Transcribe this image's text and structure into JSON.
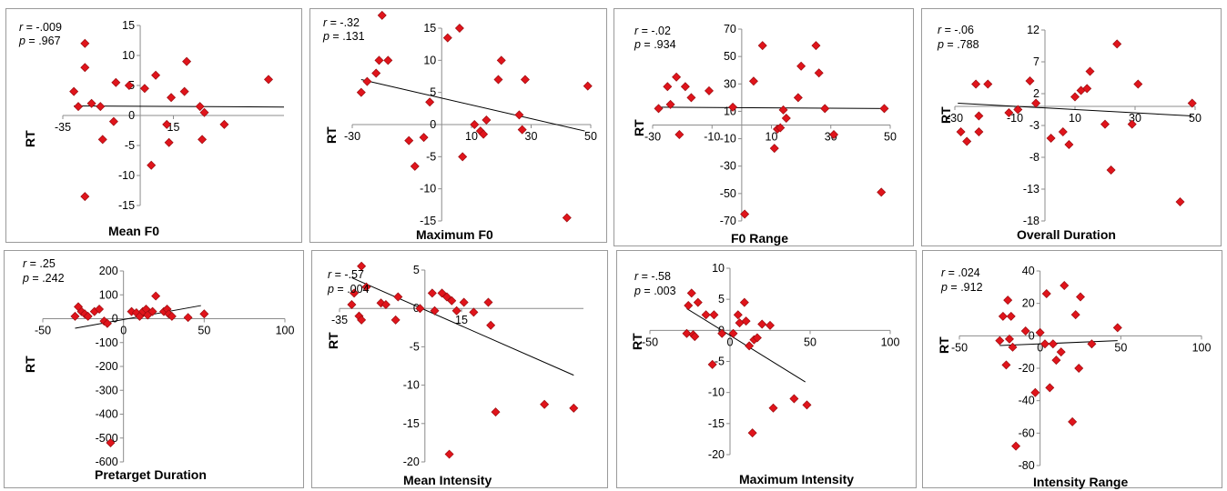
{
  "chart_data": [
    {
      "type": "scatter",
      "xlabel": "Mean F0",
      "ylabel": "RT",
      "stats": {
        "r_label": "r",
        "r": " = -.009",
        "p_label": "p",
        "p": " = .967"
      },
      "xticks": [
        "-35",
        "15"
      ],
      "yticks": [
        "15",
        "10",
        "5",
        "0",
        "-5",
        "-10",
        "-15"
      ],
      "xlim": [
        -35,
        65
      ],
      "ylim": [
        -15,
        15
      ],
      "points": [
        [
          -30,
          4
        ],
        [
          -28,
          1.5
        ],
        [
          -25,
          12
        ],
        [
          -25,
          8
        ],
        [
          -25,
          -13.5
        ],
        [
          -22,
          2
        ],
        [
          -18,
          1.5
        ],
        [
          -17,
          -4
        ],
        [
          -12,
          -1
        ],
        [
          -11,
          5.5
        ],
        [
          -5,
          5
        ],
        [
          2,
          4.5
        ],
        [
          5,
          -8.3
        ],
        [
          7,
          6.7
        ],
        [
          12,
          -1.5
        ],
        [
          13,
          -4.5
        ],
        [
          14,
          3
        ],
        [
          20,
          4
        ],
        [
          21,
          9
        ],
        [
          27,
          1.5
        ],
        [
          28,
          -4
        ],
        [
          29,
          0.5
        ],
        [
          38,
          -1.5
        ],
        [
          58,
          6
        ]
      ],
      "trend": [
        [
          -30,
          1.6
        ],
        [
          65,
          1.4
        ]
      ]
    },
    {
      "type": "scatter",
      "xlabel": "Maximum F0",
      "ylabel": "RT",
      "stats": {
        "r_label": "r",
        "r": " = -.32",
        "p_label": "p",
        "p": " = .131"
      },
      "xticks": [
        "-30",
        "10",
        "30",
        "50"
      ],
      "yticks": [
        "15",
        "10",
        "5",
        "0",
        "-5",
        "-10",
        "-15"
      ],
      "xlim": [
        -30,
        50
      ],
      "ylim": [
        -15,
        15
      ],
      "points": [
        [
          -27,
          5
        ],
        [
          -25,
          6.7
        ],
        [
          -22,
          8
        ],
        [
          -21,
          10
        ],
        [
          -20,
          17
        ],
        [
          -18,
          10
        ],
        [
          -11,
          -2.5
        ],
        [
          -9,
          -6.5
        ],
        [
          -6,
          -2
        ],
        [
          -4,
          3.5
        ],
        [
          2,
          13.5
        ],
        [
          6,
          15
        ],
        [
          7,
          -5
        ],
        [
          11,
          0
        ],
        [
          13,
          -1
        ],
        [
          14,
          -1.5
        ],
        [
          15,
          0.7
        ],
        [
          19,
          7
        ],
        [
          20,
          10
        ],
        [
          26,
          1.5
        ],
        [
          27,
          -0.8
        ],
        [
          28,
          7
        ],
        [
          42,
          -14.5
        ],
        [
          49,
          6
        ]
      ],
      "trend": [
        [
          -27,
          7
        ],
        [
          48,
          -1
        ]
      ]
    },
    {
      "type": "scatter",
      "xlabel": "F0 Range",
      "ylabel": "RT",
      "stats": {
        "r_label": "r",
        "r": " = -.02",
        "p_label": "p",
        "p": " = .934"
      },
      "xticks": [
        "-30",
        "-10",
        "10",
        "30",
        "50"
      ],
      "yticks": [
        "70",
        "50",
        "30",
        "10",
        "-10",
        "-30",
        "-50",
        "-70"
      ],
      "xlim": [
        -30,
        50
      ],
      "ylim": [
        -70,
        70
      ],
      "points": [
        [
          -28,
          12
        ],
        [
          -25,
          28
        ],
        [
          -24,
          15
        ],
        [
          -22,
          35
        ],
        [
          -21,
          -7
        ],
        [
          -19,
          28
        ],
        [
          -17,
          20
        ],
        [
          -11,
          25
        ],
        [
          -3,
          13
        ],
        [
          1,
          -65
        ],
        [
          4,
          32
        ],
        [
          7,
          58
        ],
        [
          11,
          -17
        ],
        [
          12,
          -3
        ],
        [
          13,
          -2
        ],
        [
          14,
          11
        ],
        [
          15,
          5
        ],
        [
          19,
          20
        ],
        [
          20,
          43
        ],
        [
          25,
          58
        ],
        [
          26,
          38
        ],
        [
          28,
          12
        ],
        [
          31,
          -7
        ],
        [
          47,
          -49
        ],
        [
          48,
          12
        ]
      ],
      "trend": [
        [
          -29,
          13
        ],
        [
          49,
          12
        ]
      ]
    },
    {
      "type": "scatter",
      "xlabel": "Overall Duration",
      "ylabel": "RT",
      "stats": {
        "r_label": "r",
        "r": " = -.06",
        "p_label": "p",
        "p": " = .788"
      },
      "xticks": [
        "-30",
        "-10",
        "10",
        "30",
        "50"
      ],
      "yticks": [
        "12",
        "7",
        "2",
        "-3",
        "-8",
        "-13",
        "-18"
      ],
      "xlim": [
        -30,
        50
      ],
      "ylim": [
        -18,
        12
      ],
      "points": [
        [
          -28,
          -4
        ],
        [
          -26,
          -5.5
        ],
        [
          -23,
          3.5
        ],
        [
          -22,
          -1.5
        ],
        [
          -22,
          -4
        ],
        [
          -19,
          3.5
        ],
        [
          -12,
          -1
        ],
        [
          -9,
          -0.5
        ],
        [
          -5,
          4
        ],
        [
          -3,
          0.5
        ],
        [
          2,
          -5
        ],
        [
          6,
          -4
        ],
        [
          8,
          -6
        ],
        [
          10,
          1.5
        ],
        [
          12,
          2.5
        ],
        [
          14,
          2.8
        ],
        [
          15,
          5.5
        ],
        [
          20,
          -2.8
        ],
        [
          22,
          -10
        ],
        [
          24,
          9.8
        ],
        [
          29,
          -2.8
        ],
        [
          31,
          3.5
        ],
        [
          45,
          -15
        ],
        [
          49,
          0.5
        ]
      ],
      "trend": [
        [
          -29,
          0.5
        ],
        [
          49,
          -1.5
        ]
      ]
    },
    {
      "type": "scatter",
      "xlabel": "Pretarget Duration",
      "ylabel": "RT",
      "stats": {
        "r_label": "r",
        "r": " = .25",
        "p_label": "p",
        "p": " = .242"
      },
      "xticks": [
        "-50",
        "0",
        "50",
        "100"
      ],
      "yticks": [
        "200",
        "100",
        "0",
        "-100",
        "-200",
        "-300",
        "-400",
        "-500",
        "-600"
      ],
      "xlim": [
        -50,
        100
      ],
      "ylim": [
        -600,
        200
      ],
      "points": [
        [
          -30,
          10
        ],
        [
          -28,
          50
        ],
        [
          -26,
          30
        ],
        [
          -24,
          20
        ],
        [
          -22,
          10
        ],
        [
          -18,
          30
        ],
        [
          -15,
          40
        ],
        [
          -12,
          -10
        ],
        [
          -10,
          -20
        ],
        [
          -8,
          -520
        ],
        [
          5,
          30
        ],
        [
          8,
          25
        ],
        [
          10,
          10
        ],
        [
          12,
          30
        ],
        [
          14,
          40
        ],
        [
          15,
          15
        ],
        [
          18,
          30
        ],
        [
          20,
          95
        ],
        [
          25,
          30
        ],
        [
          27,
          40
        ],
        [
          28,
          20
        ],
        [
          30,
          10
        ],
        [
          40,
          5
        ],
        [
          50,
          20
        ]
      ],
      "trend": [
        [
          -30,
          -40
        ],
        [
          48,
          55
        ]
      ]
    },
    {
      "type": "scatter",
      "xlabel": "Mean Intensity",
      "ylabel": "RT",
      "stats": {
        "r_label": "r",
        "r": " = -.57",
        "p_label": "p",
        "p": " = .004"
      },
      "xticks": [
        "-35",
        "15"
      ],
      "yticks": [
        "5",
        "0",
        "-5",
        "-10",
        "-15",
        "-20"
      ],
      "xlim": [
        -35,
        65
      ],
      "ylim": [
        -20,
        5
      ],
      "points": [
        [
          -30,
          0.5
        ],
        [
          -29,
          2
        ],
        [
          -27,
          -1
        ],
        [
          -26,
          -1.5
        ],
        [
          -26,
          5.5
        ],
        [
          -24,
          2.8
        ],
        [
          -18,
          0.7
        ],
        [
          -16,
          0.5
        ],
        [
          -12,
          -1.5
        ],
        [
          -11,
          1.5
        ],
        [
          -2,
          0
        ],
        [
          3,
          2
        ],
        [
          4,
          -0.3
        ],
        [
          7,
          2
        ],
        [
          9,
          1.5
        ],
        [
          10,
          -19
        ],
        [
          11,
          1
        ],
        [
          13,
          -0.3
        ],
        [
          16,
          0.8
        ],
        [
          20,
          -0.5
        ],
        [
          26,
          0.8
        ],
        [
          27,
          -2.2
        ],
        [
          29,
          -13.5
        ],
        [
          49,
          -12.5
        ],
        [
          61,
          -13
        ]
      ],
      "trend": [
        [
          -30,
          4
        ],
        [
          61,
          -8.7
        ]
      ]
    },
    {
      "type": "scatter",
      "xlabel": "Maximum Intensity",
      "ylabel": "RT",
      "stats": {
        "r_label": "r",
        "r": " = -.58",
        "p_label": "p",
        "p": " = .003"
      },
      "xticks": [
        "-50",
        "0",
        "50",
        "100"
      ],
      "yticks": [
        "10",
        "5",
        "0",
        "-5",
        "-10",
        "-15",
        "-20"
      ],
      "xlim": [
        -50,
        100
      ],
      "ylim": [
        -20,
        10
      ],
      "points": [
        [
          -27,
          -0.5
        ],
        [
          -26,
          4
        ],
        [
          -24,
          6
        ],
        [
          -23,
          -0.7
        ],
        [
          -22,
          -1
        ],
        [
          -20,
          4.5
        ],
        [
          -15,
          2.5
        ],
        [
          -11,
          -5.5
        ],
        [
          -10,
          2.5
        ],
        [
          -5,
          -0.5
        ],
        [
          2,
          -0.5
        ],
        [
          5,
          2.5
        ],
        [
          6,
          1.2
        ],
        [
          9,
          4.5
        ],
        [
          10,
          1.5
        ],
        [
          12,
          -2.5
        ],
        [
          14,
          -16.5
        ],
        [
          15,
          -1.5
        ],
        [
          17,
          -1.2
        ],
        [
          20,
          1
        ],
        [
          25,
          0.8
        ],
        [
          27,
          -12.5
        ],
        [
          40,
          -11
        ],
        [
          48,
          -12
        ]
      ],
      "trend": [
        [
          -27,
          3.5
        ],
        [
          47,
          -8.3
        ]
      ]
    },
    {
      "type": "scatter",
      "xlabel": "Intensity Range",
      "ylabel": "RT",
      "stats": {
        "r_label": "r",
        "r": " = .024",
        "p_label": "p",
        "p": " = .912"
      },
      "xticks": [
        "-50",
        "0",
        "50",
        "100"
      ],
      "yticks": [
        "40",
        "20",
        "0",
        "-20",
        "-40",
        "-60",
        "-80"
      ],
      "xlim": [
        -50,
        100
      ],
      "ylim": [
        -80,
        40
      ],
      "points": [
        [
          -25,
          -3
        ],
        [
          -23,
          12
        ],
        [
          -21,
          -18
        ],
        [
          -20,
          22
        ],
        [
          -19,
          -2
        ],
        [
          -18,
          12
        ],
        [
          -17,
          -7
        ],
        [
          -15,
          -68
        ],
        [
          -9,
          3
        ],
        [
          -3,
          -35
        ],
        [
          0,
          2
        ],
        [
          3,
          -5
        ],
        [
          4,
          26
        ],
        [
          6,
          -32
        ],
        [
          8,
          -5
        ],
        [
          10,
          -15
        ],
        [
          13,
          -10
        ],
        [
          15,
          31
        ],
        [
          20,
          -53
        ],
        [
          22,
          13
        ],
        [
          24,
          -20
        ],
        [
          25,
          24
        ],
        [
          32,
          -5
        ],
        [
          48,
          5
        ]
      ],
      "trend": [
        [
          -25,
          -6
        ],
        [
          48,
          -3
        ]
      ]
    }
  ]
}
